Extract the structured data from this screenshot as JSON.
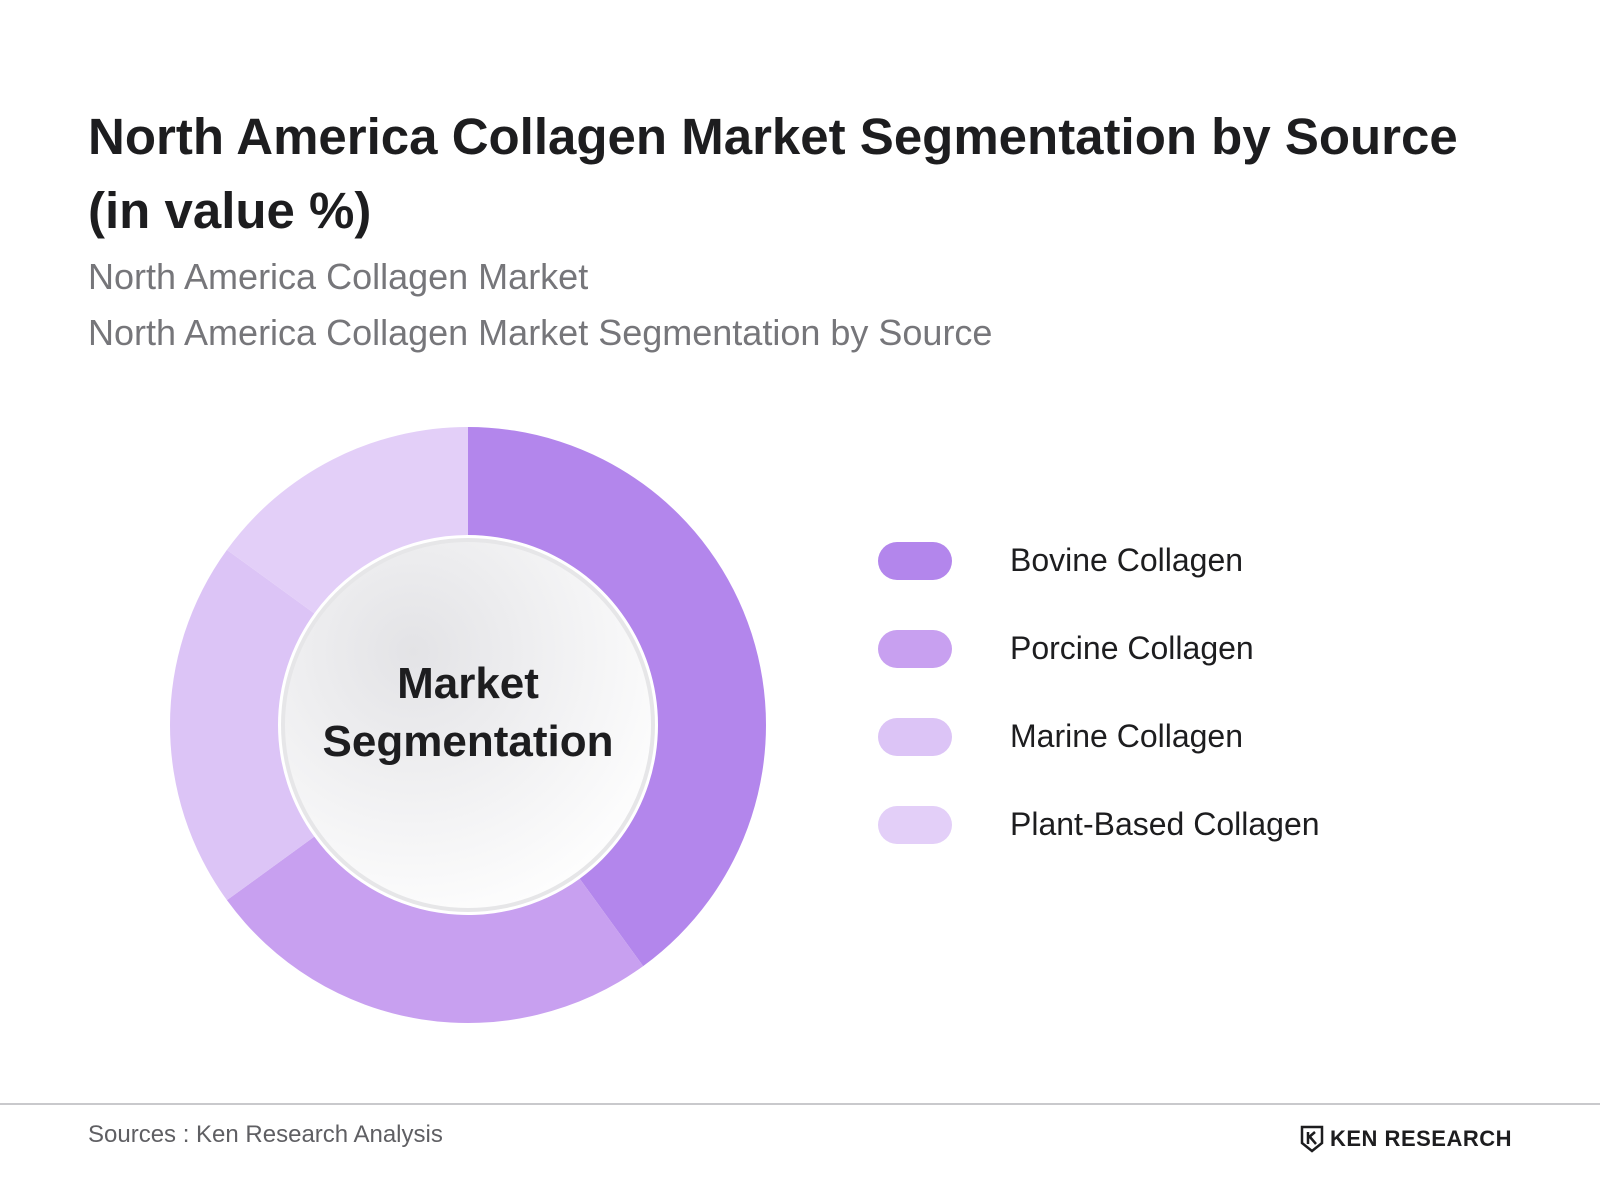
{
  "title": "North America Collagen Market Segmentation by Source (in value %)",
  "subtitles": [
    "North America Collagen Market",
    "North America Collagen Market Segmentation by Source"
  ],
  "center_label": {
    "line1": "Market",
    "line2": "Segmentation"
  },
  "footer": {
    "source": "Sources : Ken Research Analysis",
    "logo_text": "KEN RESEARCH"
  },
  "chart_data": {
    "type": "pie",
    "variant": "donut",
    "categories": [
      "Bovine Collagen",
      "Porcine Collagen",
      "Marine Collagen",
      "Plant-Based Collagen"
    ],
    "values": [
      40,
      25,
      20,
      15
    ],
    "unit": "%",
    "colors": [
      "#b386ec",
      "#c8a0f0",
      "#dcc4f6",
      "#e3cff8"
    ],
    "start": "top",
    "direction": "clockwise",
    "legend_position": "right"
  }
}
